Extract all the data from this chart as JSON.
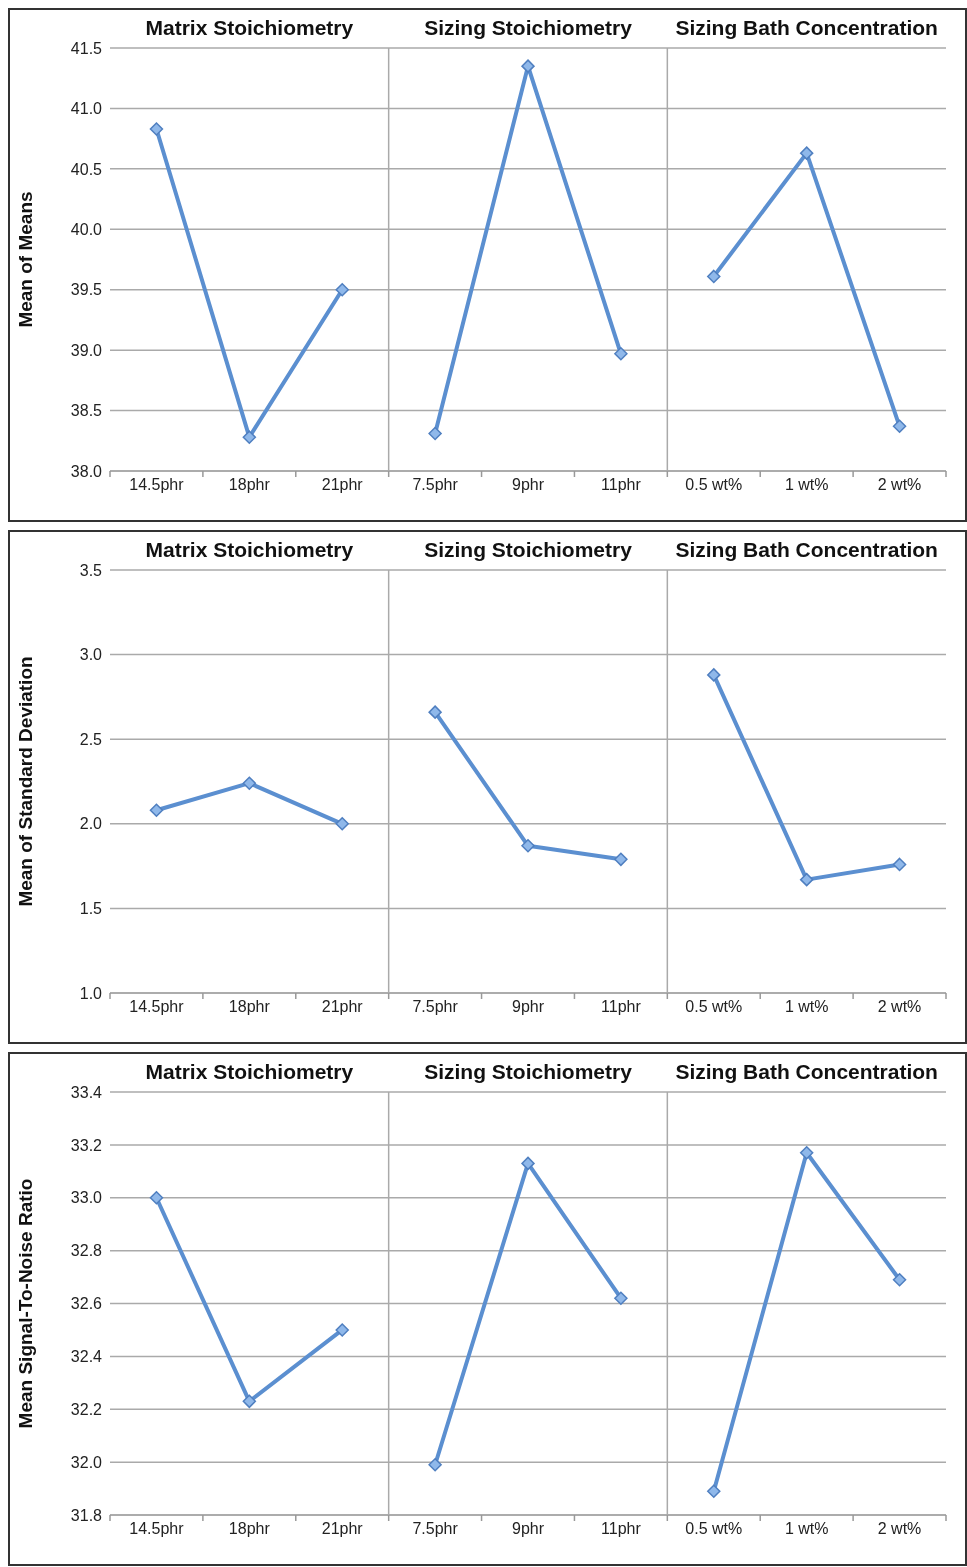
{
  "chart_data": [
    {
      "type": "line",
      "ylabel": "Mean of Means",
      "categories": [
        "14.5phr",
        "18phr",
        "21phr",
        "7.5phr",
        "9phr",
        "11phr",
        "0.5 wt%",
        "1 wt%",
        "2 wt%"
      ],
      "ylim": [
        38,
        41.5
      ],
      "yticks": [
        {
          "value": 38,
          "label": "38.0"
        },
        {
          "value": 38.5,
          "label": "38.5"
        },
        {
          "value": 39,
          "label": "39.0"
        },
        {
          "value": 39.5,
          "label": "39.5"
        },
        {
          "value": 40,
          "label": "40.0"
        },
        {
          "value": 40.5,
          "label": "40.5"
        },
        {
          "value": 41,
          "label": "41.0"
        },
        {
          "value": 41.5,
          "label": "41.5"
        }
      ],
      "grid": "y",
      "marker": "diamond",
      "annotations": [
        "Matrix Stoichiometry",
        "Sizing Stoichiometry",
        "Sizing Bath Concentration"
      ],
      "series": [
        {
          "color": "#5b8fd0",
          "values": [
            40.83,
            38.28,
            39.5,
            null,
            null,
            null,
            null,
            null,
            null
          ]
        },
        {
          "color": "#5b8fd0",
          "values": [
            null,
            null,
            null,
            38.31,
            41.35,
            38.97,
            null,
            null,
            null
          ]
        },
        {
          "color": "#5b8fd0",
          "values": [
            null,
            null,
            null,
            null,
            null,
            null,
            39.61,
            40.63,
            38.37
          ]
        }
      ]
    },
    {
      "type": "line",
      "ylabel": "Mean of Standard Deviation",
      "categories": [
        "14.5phr",
        "18phr",
        "21phr",
        "7.5phr",
        "9phr",
        "11phr",
        "0.5 wt%",
        "1 wt%",
        "2 wt%"
      ],
      "ylim": [
        1,
        3.5
      ],
      "yticks": [
        {
          "value": 1,
          "label": "1.0"
        },
        {
          "value": 1.5,
          "label": "1.5"
        },
        {
          "value": 2,
          "label": "2.0"
        },
        {
          "value": 2.5,
          "label": "2.5"
        },
        {
          "value": 3,
          "label": "3.0"
        },
        {
          "value": 3.5,
          "label": "3.5"
        }
      ],
      "grid": "y",
      "marker": "diamond",
      "annotations": [
        "Matrix Stoichiometry",
        "Sizing Stoichiometry",
        "Sizing Bath Concentration"
      ],
      "series": [
        {
          "color": "#5b8fd0",
          "values": [
            2.08,
            2.24,
            2.0,
            null,
            null,
            null,
            null,
            null,
            null
          ]
        },
        {
          "color": "#5b8fd0",
          "values": [
            null,
            null,
            null,
            2.66,
            1.87,
            1.79,
            null,
            null,
            null
          ]
        },
        {
          "color": "#5b8fd0",
          "values": [
            null,
            null,
            null,
            null,
            null,
            null,
            2.88,
            1.67,
            1.76
          ]
        }
      ]
    },
    {
      "type": "line",
      "ylabel": "Mean Signal-To-Noise Ratio",
      "categories": [
        "14.5phr",
        "18phr",
        "21phr",
        "7.5phr",
        "9phr",
        "11phr",
        "0.5 wt%",
        "1 wt%",
        "2 wt%"
      ],
      "ylim": [
        31.8,
        33.4
      ],
      "yticks": [
        {
          "value": 31.8,
          "label": "31.8"
        },
        {
          "value": 32,
          "label": "32.0"
        },
        {
          "value": 32.2,
          "label": "32.2"
        },
        {
          "value": 32.4,
          "label": "32.4"
        },
        {
          "value": 32.6,
          "label": "32.6"
        },
        {
          "value": 32.8,
          "label": "32.8"
        },
        {
          "value": 33,
          "label": "33.0"
        },
        {
          "value": 33.2,
          "label": "33.2"
        },
        {
          "value": 33.4,
          "label": "33.4"
        }
      ],
      "grid": "y",
      "marker": "diamond",
      "annotations": [
        "Matrix Stoichiometry",
        "Sizing Stoichiometry",
        "Sizing Bath Concentration"
      ],
      "series": [
        {
          "color": "#5b8fd0",
          "values": [
            33.0,
            32.23,
            32.5,
            null,
            null,
            null,
            null,
            null,
            null
          ]
        },
        {
          "color": "#5b8fd0",
          "values": [
            null,
            null,
            null,
            31.99,
            33.13,
            32.62,
            null,
            null,
            null
          ]
        },
        {
          "color": "#5b8fd0",
          "values": [
            null,
            null,
            null,
            null,
            null,
            null,
            31.89,
            33.17,
            32.69
          ]
        }
      ]
    }
  ]
}
